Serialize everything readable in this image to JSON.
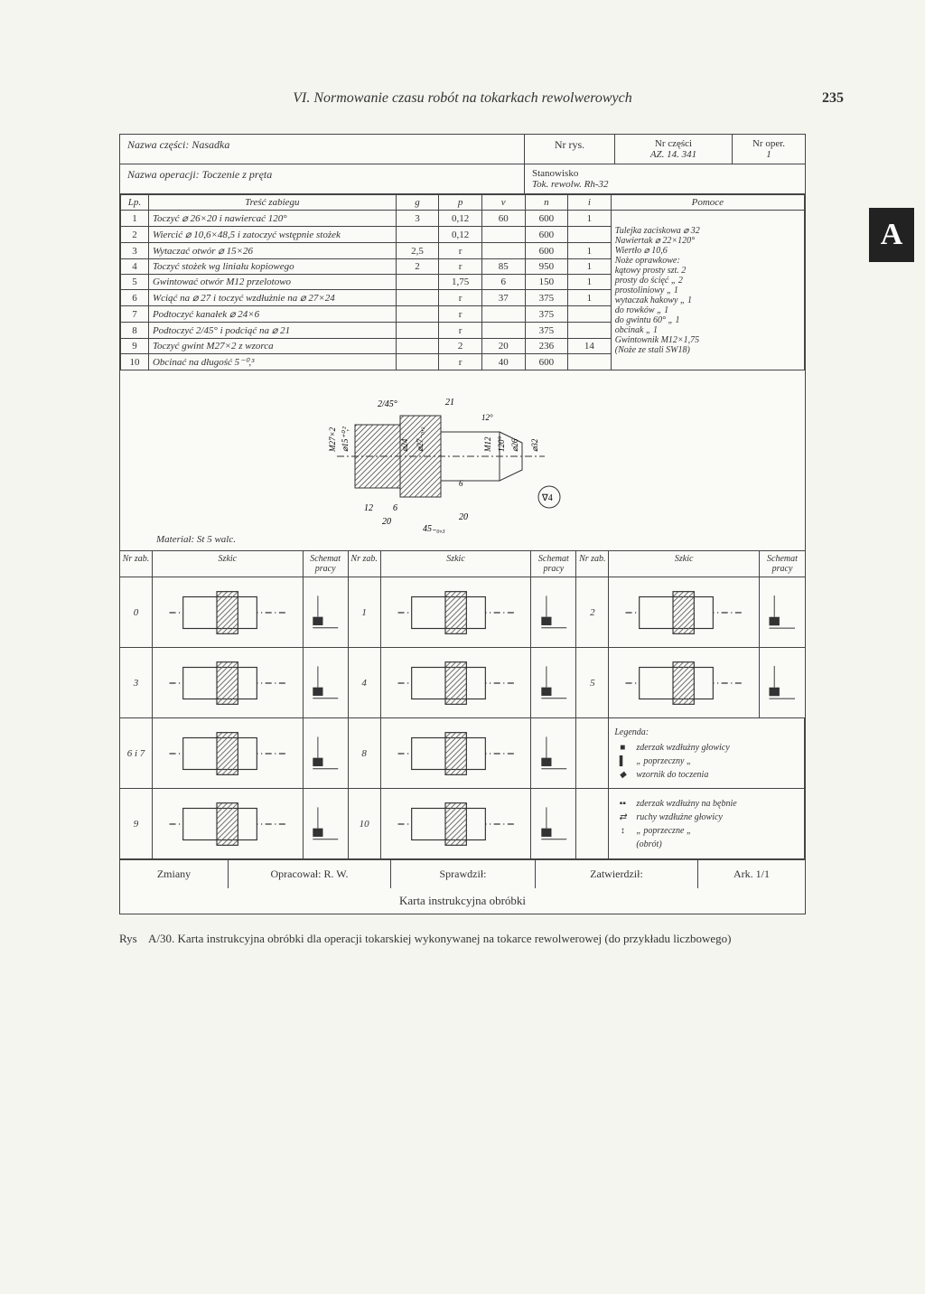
{
  "chapter_title": "VI. Normowanie czasu robót na tokarkach rewolwerowych",
  "page_number": "235",
  "side_tab": "A",
  "header": {
    "part_name_label": "Nazwa części:",
    "part_name": "Nasadka",
    "dwg_label": "Nr rys.",
    "part_no_label": "Nr części",
    "part_no": "AZ. 14. 341",
    "oper_no_label": "Nr oper.",
    "oper_no": "1",
    "op_name_label": "Nazwa operacji:",
    "op_name": "Toczenie z pręta",
    "station_label": "Stanowisko",
    "station": "Tok. rewolw. Rh-32"
  },
  "ops_headers": {
    "lp": "Lp.",
    "tresc": "Treść zabiegu",
    "g": "g",
    "p": "p",
    "v": "v",
    "n": "n",
    "i": "i",
    "pomoce": "Pomoce"
  },
  "ops": [
    {
      "lp": "1",
      "desc": "Toczyć ⌀ 26×20 i nawiercać 120°",
      "g": "3",
      "p": "0,12",
      "v": "60",
      "n": "600",
      "i": "1"
    },
    {
      "lp": "2",
      "desc": "Wiercić ⌀ 10,6×48,5 i zatoczyć wstępnie stożek",
      "g": "",
      "p": "0,12",
      "v": "",
      "n": "600",
      "i": ""
    },
    {
      "lp": "3",
      "desc": "Wytaczać otwór ⌀ 15×26",
      "g": "2,5",
      "p": "r",
      "v": "",
      "n": "600",
      "i": "1"
    },
    {
      "lp": "4",
      "desc": "Toczyć stożek wg liniału kopiowego",
      "g": "2",
      "p": "r",
      "v": "85",
      "n": "950",
      "i": "1"
    },
    {
      "lp": "5",
      "desc": "Gwintować otwór M12 przelotowo",
      "g": "",
      "p": "1,75",
      "v": "6",
      "n": "150",
      "i": "1"
    },
    {
      "lp": "6",
      "desc": "Wciąć na ⌀ 27 i toczyć wzdłużnie na ⌀ 27×24",
      "g": "",
      "p": "r",
      "v": "37",
      "n": "375",
      "i": "1"
    },
    {
      "lp": "7",
      "desc": "Podtoczyć kanałek ⌀ 24×6",
      "g": "",
      "p": "r",
      "v": "",
      "n": "375",
      "i": ""
    },
    {
      "lp": "8",
      "desc": "Podtoczyć 2/45° i podciąć na ⌀ 21",
      "g": "",
      "p": "r",
      "v": "",
      "n": "375",
      "i": ""
    },
    {
      "lp": "9",
      "desc": "Toczyć gwint M27×2 z wzorca",
      "g": "",
      "p": "2",
      "v": "20",
      "n": "236",
      "i": "14"
    },
    {
      "lp": "10",
      "desc": "Obcinać na długość 5⁻⁰,³",
      "g": "",
      "p": "r",
      "v": "40",
      "n": "600",
      "i": ""
    }
  ],
  "tools": [
    "Tulejka zaciskowa ⌀ 32",
    "Nawiertak ⌀ 22×120°",
    "Wiertło ⌀ 10,6",
    "Noże oprawkowe:",
    "kątowy prosty    szt. 2",
    "prosty do ścięć    „   2",
    "prostoliniowy      „   1",
    "wytaczak hakowy „   1",
    "do rowków          „   1",
    "do gwintu 60°      „   1",
    "obcinak              „   1",
    "Gwintownik M12×1,75",
    "(Noże ze stali SW18)"
  ],
  "drawing": {
    "material": "Materiał: St 5 walc.",
    "dims": {
      "chamfer": "2/45°",
      "len21": "21",
      "ang12": "12°",
      "thread": "M27×2",
      "d15": "⌀15⁺⁰,²",
      "d24": "⌀24",
      "d27": "⌀27₋₀,₂",
      "m12": "M12",
      "ang120": "120°",
      "d26": "⌀26",
      "d32": "⌀32",
      "len12": "12",
      "len6": "6",
      "len20": "20",
      "len20b": "20",
      "len45": "45₋₀,₃",
      "rough": "∇4",
      "gap6": "6"
    }
  },
  "sketch_headers": {
    "nr": "Nr zab.",
    "szkic": "Szkic",
    "schemat": "Schemat pracy"
  },
  "sketch_nums": [
    "0",
    "1",
    "2",
    "3",
    "4",
    "5",
    "6 i 7",
    "8",
    "9",
    "10"
  ],
  "legend": {
    "title": "Legenda:",
    "items": [
      "zderzak wzdłużny głowicy",
      "   „    poprzeczny   „",
      "wzornik do toczenia",
      "zderzak wzdłużny na bębnie",
      "ruchy wzdłużne głowicy",
      "  „   poprzeczne   „",
      "(obrót)"
    ]
  },
  "footer": {
    "zmiany": "Zmiany",
    "opracowal": "Opracował: R. W.",
    "sprawdzil": "Sprawdził:",
    "zatwierdzil": "Zatwierdził:",
    "ark": "Ark. 1/1",
    "title": "Karta instrukcyjna obróbki"
  },
  "caption": {
    "label": "Rys",
    "text": "A/30. Karta instrukcyjna obróbki dla operacji tokarskiej wykonywanej na tokarce rewolwerowej (do przykładu liczbowego)"
  }
}
